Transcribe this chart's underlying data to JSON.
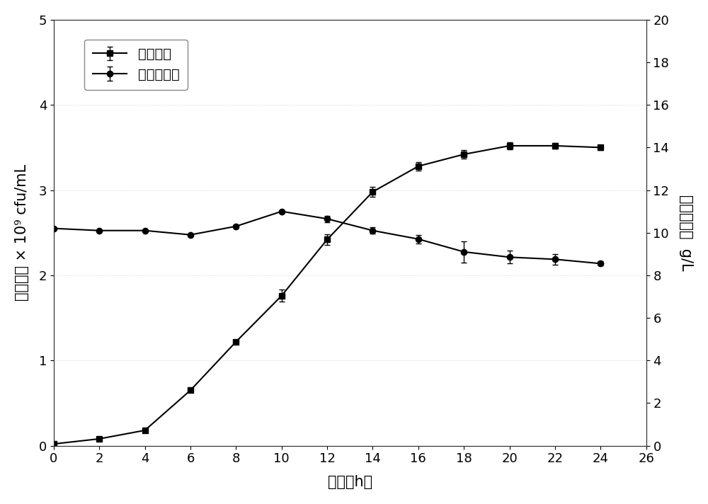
{
  "time": [
    0,
    2,
    4,
    6,
    8,
    10,
    12,
    14,
    16,
    18,
    20,
    22,
    24
  ],
  "bacteria_y": [
    0.02,
    0.08,
    0.18,
    0.65,
    1.22,
    1.76,
    2.42,
    2.98,
    3.28,
    3.42,
    3.52,
    3.52,
    3.5
  ],
  "bacteria_yerr": [
    0.0,
    0.0,
    0.0,
    0.0,
    0.0,
    0.07,
    0.06,
    0.06,
    0.05,
    0.05,
    0.04,
    0.03,
    0.03
  ],
  "glucose_y": [
    10.2,
    10.1,
    10.1,
    9.9,
    10.3,
    11.0,
    10.65,
    10.1,
    9.7,
    9.1,
    8.85,
    8.75,
    8.55
  ],
  "glucose_yerr": [
    0.0,
    0.0,
    0.0,
    0.0,
    0.0,
    0.0,
    0.15,
    0.15,
    0.2,
    0.5,
    0.3,
    0.25,
    0.1
  ],
  "left_ylabel": "活菌浓度 × 10⁹ cfu/mL",
  "right_ylabel": "葡萄糖浓度  g/L",
  "xlabel": "时间（h）",
  "legend_bacteria": "活菌浓度",
  "legend_glucose": "葡萄糖浓度",
  "xlim": [
    0,
    26
  ],
  "ylim_left": [
    0,
    5
  ],
  "ylim_right": [
    0,
    20
  ],
  "xticks": [
    0,
    2,
    4,
    6,
    8,
    10,
    12,
    14,
    16,
    18,
    20,
    22,
    24,
    26
  ],
  "yticks_left": [
    0,
    1,
    2,
    3,
    4,
    5
  ],
  "yticks_right": [
    0,
    2,
    4,
    6,
    8,
    10,
    12,
    14,
    16,
    18,
    20
  ],
  "line_color": "#000000",
  "bg_color": "#ffffff",
  "marker_size": 6,
  "line_width": 1.5,
  "font_size_label": 15,
  "font_size_tick": 13,
  "font_size_legend": 14
}
